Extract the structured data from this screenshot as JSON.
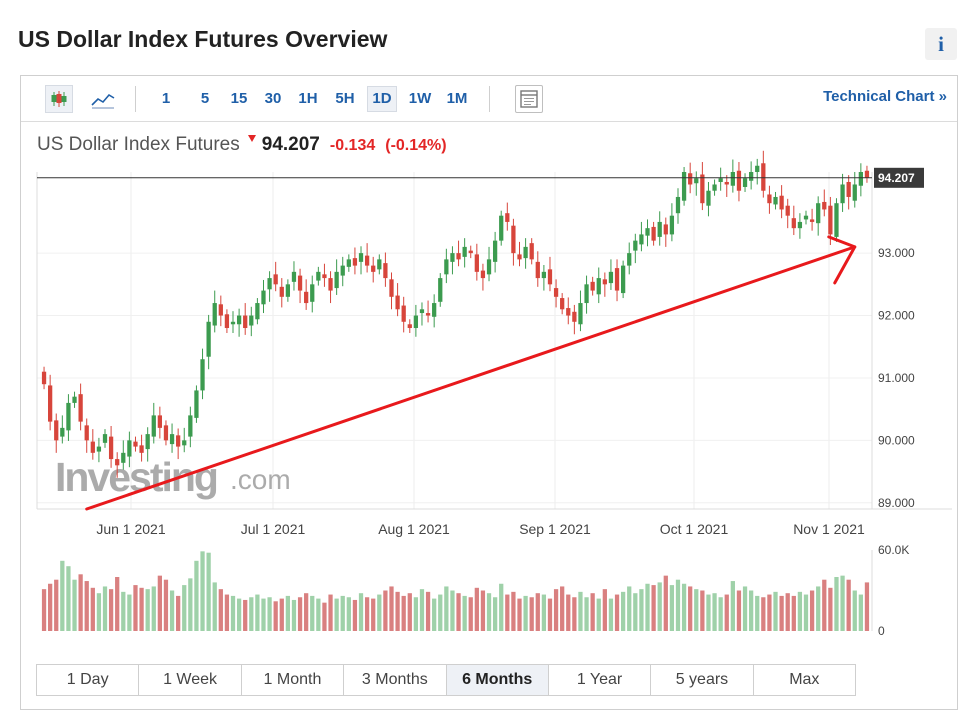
{
  "page": {
    "title": "US Dollar Index Futures Overview",
    "info_icon": "i"
  },
  "toolbar": {
    "icons": [
      "candlestick-chart-icon",
      "line-chart-icon",
      "chart-settings-icon"
    ],
    "intervals": [
      "1",
      "5",
      "15",
      "30",
      "1H",
      "5H",
      "1D",
      "1W",
      "1M"
    ],
    "active_interval": "1D",
    "technical_chart_label": "Technical Chart »"
  },
  "quote": {
    "name": "US Dollar Index Futures",
    "price": "94.207",
    "change": "-0.134",
    "change_pct": "(-0.14%)"
  },
  "timeframes": {
    "items": [
      "1 Day",
      "1 Week",
      "1 Month",
      "3 Months",
      "6 Months",
      "1 Year",
      "5 years",
      "Max"
    ],
    "active": "6 Months"
  },
  "watermark": {
    "brand": "Investing",
    "suffix": ".com"
  },
  "colors": {
    "up": "#3c9b4f",
    "down": "#d7453b",
    "vol_up": "#9fd1a9",
    "vol_down": "#d98080",
    "annotation": "#e8191c",
    "link": "#1f5fa8"
  },
  "chart_data": {
    "type": "candlestick",
    "price_axis": {
      "ticks": [
        "89.000",
        "90.000",
        "91.000",
        "92.000",
        "93.000"
      ],
      "min": 88.9,
      "max": 94.3
    },
    "current_price_label": "94.207",
    "current_price": 94.207,
    "x_axis": {
      "ticks": [
        "Jun 1 2021",
        "Jul 1 2021",
        "Aug 1 2021",
        "Sep 1 2021",
        "Oct 1 2021",
        "Nov 1 2021"
      ]
    },
    "volume_axis": {
      "ticks": [
        "60.0K",
        "0"
      ],
      "max": 60000
    },
    "closes": [
      90.9,
      90.3,
      90.0,
      90.2,
      90.6,
      90.7,
      90.3,
      90.0,
      89.8,
      89.9,
      90.1,
      89.7,
      89.6,
      89.8,
      90.0,
      89.9,
      89.8,
      90.1,
      90.4,
      90.2,
      90.0,
      90.1,
      89.9,
      90.0,
      90.4,
      90.8,
      91.3,
      91.9,
      92.2,
      92.0,
      91.8,
      91.9,
      92.0,
      91.8,
      92.0,
      92.2,
      92.4,
      92.6,
      92.5,
      92.3,
      92.5,
      92.7,
      92.4,
      92.2,
      92.5,
      92.7,
      92.6,
      92.4,
      92.7,
      92.8,
      92.9,
      92.8,
      93.0,
      92.8,
      92.7,
      92.9,
      92.6,
      92.3,
      92.1,
      91.9,
      91.8,
      92.0,
      92.1,
      92.0,
      92.2,
      92.6,
      92.9,
      93.0,
      92.9,
      93.1,
      93.0,
      92.7,
      92.6,
      92.9,
      93.2,
      93.6,
      93.5,
      93.0,
      92.9,
      93.1,
      92.9,
      92.6,
      92.7,
      92.5,
      92.3,
      92.1,
      92.0,
      91.9,
      92.2,
      92.5,
      92.4,
      92.6,
      92.5,
      92.7,
      92.4,
      92.8,
      93.0,
      93.2,
      93.3,
      93.4,
      93.2,
      93.5,
      93.3,
      93.6,
      93.9,
      94.3,
      94.1,
      94.2,
      93.8,
      94.0,
      94.1,
      94.2,
      94.1,
      94.3,
      94.0,
      94.2,
      94.3,
      94.4,
      94.0,
      93.8,
      93.9,
      93.7,
      93.6,
      93.4,
      93.5,
      93.6,
      93.5,
      93.8,
      93.7,
      93.3,
      93.8,
      94.1,
      93.9,
      94.1,
      94.3,
      94.207
    ],
    "volumes": [
      31000,
      35000,
      38000,
      52000,
      48000,
      38000,
      42000,
      37000,
      32000,
      28000,
      33000,
      31000,
      40000,
      29000,
      27000,
      34000,
      32000,
      31000,
      33000,
      41000,
      38000,
      30000,
      26000,
      34000,
      39000,
      52000,
      59000,
      58000,
      36000,
      31000,
      27000,
      26000,
      24000,
      23000,
      25000,
      27000,
      24000,
      25000,
      22000,
      24000,
      26000,
      23000,
      25000,
      28000,
      26000,
      24000,
      21000,
      27000,
      24000,
      26000,
      25000,
      23000,
      28000,
      25000,
      24000,
      27000,
      30000,
      33000,
      29000,
      26000,
      28000,
      25000,
      31000,
      29000,
      24000,
      27000,
      33000,
      30000,
      28000,
      26000,
      25000,
      32000,
      30000,
      28000,
      25000,
      35000,
      27000,
      29000,
      24000,
      26000,
      25000,
      28000,
      27000,
      24000,
      31000,
      33000,
      27000,
      25000,
      29000,
      25000,
      28000,
      24000,
      31000,
      24000,
      27000,
      29000,
      33000,
      28000,
      31000,
      35000,
      34000,
      36000,
      41000,
      34000,
      38000,
      35000,
      33000,
      31000,
      30000,
      27000,
      28000,
      25000,
      27000,
      37000,
      30000,
      33000,
      30000,
      26000,
      25000,
      27000,
      29000,
      26000,
      28000,
      26000,
      29000,
      27000,
      30000,
      33000,
      38000,
      32000,
      40000,
      41000,
      38000,
      30000,
      27000,
      36000
    ],
    "trend_annotation": {
      "type": "arrow",
      "from": {
        "index": 7,
        "price": 88.9
      },
      "to": {
        "index": 133,
        "price": 93.1
      }
    }
  }
}
